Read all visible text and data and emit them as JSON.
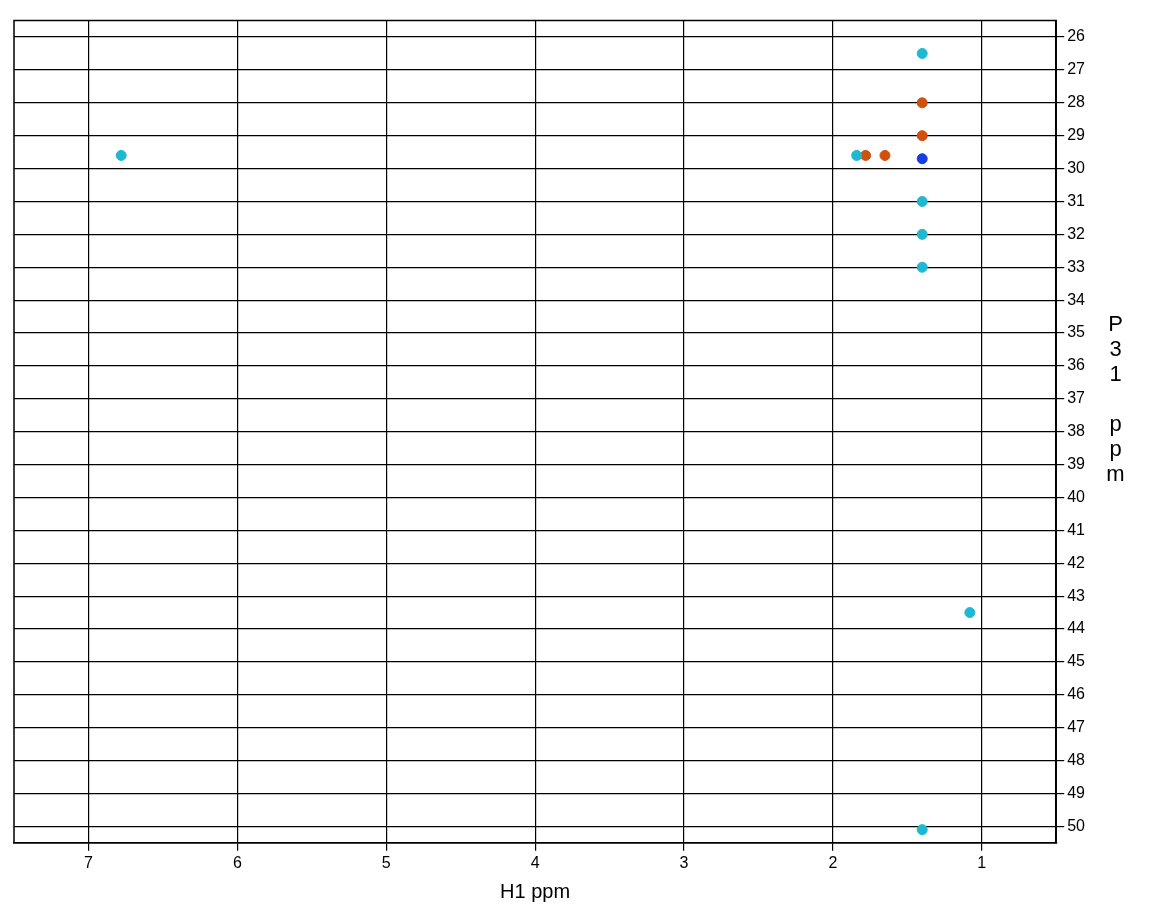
{
  "chart_data": {
    "type": "scatter",
    "xlabel": "H1 ppm",
    "ylabel": "P31 ppm",
    "xlim": [
      7.5,
      0.5
    ],
    "xticks": [
      7,
      6,
      5,
      4,
      3,
      2,
      1
    ],
    "ylim": [
      50.5,
      25.5
    ],
    "yticks": [
      26,
      27,
      28,
      29,
      30,
      31,
      32,
      33,
      34,
      35,
      36,
      37,
      38,
      39,
      40,
      41,
      42,
      43,
      44,
      45,
      46,
      47,
      48,
      49,
      50
    ],
    "grid": true,
    "legend": false,
    "marker": "circle",
    "series": [
      {
        "color": "#20b8d0",
        "x": [
          6.78,
          1.84,
          1.4,
          1.4,
          1.4,
          1.4,
          1.4,
          1.08
        ],
        "values": [
          29.6,
          29.6,
          26.5,
          31,
          32,
          33,
          50.1,
          43.5
        ]
      },
      {
        "color": "#1a3de0",
        "x": [
          1.4
        ],
        "values": [
          29.7
        ]
      },
      {
        "color": "#d05010",
        "x": [
          1.78,
          1.65,
          1.4,
          1.4
        ],
        "values": [
          29.6,
          29.6,
          28,
          29
        ]
      }
    ]
  }
}
